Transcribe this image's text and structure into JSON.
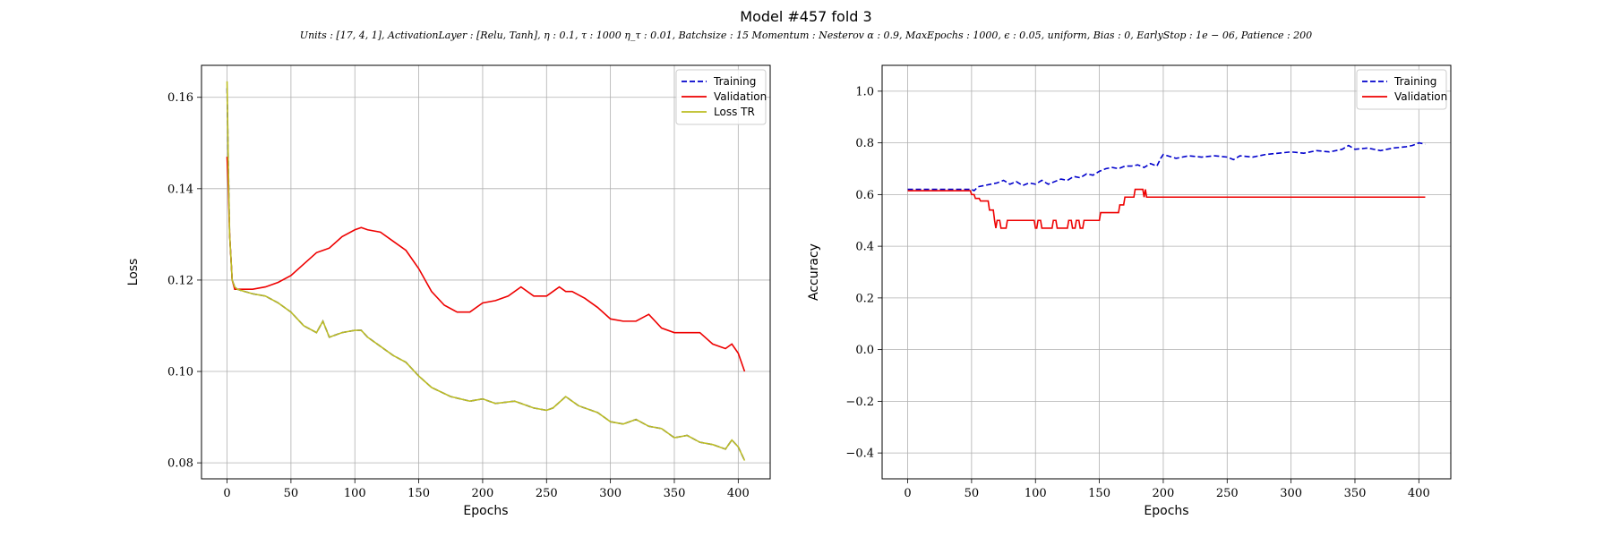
{
  "figure": {
    "title": "Model #457 fold 3",
    "subtitle": "Units : [17, 4, 1], ActivationLayer : [Relu, Tanh], η : 0.1, τ : 1000 η_τ : 0.01, Batchsize : 15 Momentum : Nesterov α : 0.9, MaxEpochs : 1000, ϵ : 0.05, uniform, Bias : 0, EarlyStop : 1e − 06, Patience : 200"
  },
  "chart_data": [
    {
      "type": "line",
      "xlabel": "Epochs",
      "ylabel": "Loss",
      "xlim": [
        -20,
        425
      ],
      "ylim": [
        0.0765,
        0.167
      ],
      "xticks": [
        "0",
        "50",
        "100",
        "150",
        "200",
        "250",
        "300",
        "350",
        "400"
      ],
      "yticks": [
        "0.08",
        "0.10",
        "0.12",
        "0.14",
        "0.16"
      ],
      "grid": true,
      "legend_position": "top-right",
      "series": [
        {
          "name": "Training",
          "color": "#0000cc",
          "dash": "dashed",
          "x": [
            0,
            1,
            2,
            4,
            6,
            8,
            10,
            20,
            30,
            40,
            50,
            60,
            70,
            75,
            80,
            90,
            100,
            105,
            110,
            120,
            130,
            140,
            150,
            160,
            175,
            190,
            200,
            210,
            225,
            240,
            250,
            255,
            265,
            275,
            290,
            300,
            310,
            320,
            330,
            340,
            350,
            360,
            370,
            380,
            390,
            395,
            400,
            405
          ],
          "y": [
            0.162,
            0.145,
            0.13,
            0.12,
            0.1185,
            0.118,
            0.1178,
            0.117,
            0.1165,
            0.115,
            0.113,
            0.11,
            0.1085,
            0.111,
            0.1075,
            0.1085,
            0.109,
            0.109,
            0.1075,
            0.1055,
            0.1035,
            0.102,
            0.099,
            0.0965,
            0.0945,
            0.0935,
            0.094,
            0.093,
            0.0935,
            0.092,
            0.0915,
            0.092,
            0.0945,
            0.0925,
            0.091,
            0.089,
            0.0885,
            0.0895,
            0.088,
            0.0875,
            0.0855,
            0.086,
            0.0845,
            0.084,
            0.083,
            0.085,
            0.0835,
            0.0805
          ]
        },
        {
          "name": "Validation",
          "color": "#ee0000",
          "dash": "solid",
          "x": [
            0,
            1,
            2,
            4,
            6,
            10,
            20,
            30,
            40,
            50,
            60,
            70,
            75,
            80,
            90,
            100,
            105,
            110,
            120,
            130,
            140,
            150,
            160,
            170,
            180,
            190,
            200,
            210,
            220,
            230,
            240,
            250,
            255,
            260,
            265,
            270,
            280,
            290,
            300,
            310,
            320,
            330,
            340,
            350,
            360,
            370,
            380,
            390,
            395,
            400,
            405
          ],
          "y": [
            0.147,
            0.14,
            0.13,
            0.12,
            0.118,
            0.118,
            0.118,
            0.1185,
            0.1195,
            0.121,
            0.1235,
            0.126,
            0.1265,
            0.127,
            0.1295,
            0.131,
            0.1315,
            0.131,
            0.1305,
            0.1285,
            0.1265,
            0.1225,
            0.1175,
            0.1145,
            0.113,
            0.113,
            0.115,
            0.1155,
            0.1165,
            0.1185,
            0.1165,
            0.1165,
            0.1175,
            0.1185,
            0.1175,
            0.1175,
            0.116,
            0.114,
            0.1115,
            0.111,
            0.111,
            0.1125,
            0.1095,
            0.1085,
            0.1085,
            0.1085,
            0.106,
            0.105,
            0.106,
            0.104,
            0.1
          ]
        },
        {
          "name": "Loss TR",
          "color": "#bcbd22",
          "dash": "solid",
          "x": [
            0,
            1,
            2,
            4,
            6,
            8,
            10,
            20,
            30,
            40,
            50,
            60,
            70,
            75,
            80,
            90,
            100,
            105,
            110,
            120,
            130,
            140,
            150,
            160,
            175,
            190,
            200,
            210,
            225,
            240,
            250,
            255,
            265,
            275,
            290,
            300,
            310,
            320,
            330,
            340,
            350,
            360,
            370,
            380,
            390,
            395,
            400,
            405
          ],
          "y": [
            0.1635,
            0.145,
            0.13,
            0.12,
            0.1185,
            0.118,
            0.1178,
            0.117,
            0.1165,
            0.115,
            0.113,
            0.11,
            0.1085,
            0.111,
            0.1075,
            0.1085,
            0.109,
            0.109,
            0.1075,
            0.1055,
            0.1035,
            0.102,
            0.099,
            0.0965,
            0.0945,
            0.0935,
            0.094,
            0.093,
            0.0935,
            0.092,
            0.0915,
            0.092,
            0.0945,
            0.0925,
            0.091,
            0.089,
            0.0885,
            0.0895,
            0.088,
            0.0875,
            0.0855,
            0.086,
            0.0845,
            0.084,
            0.083,
            0.085,
            0.0835,
            0.0805
          ]
        }
      ]
    },
    {
      "type": "line",
      "xlabel": "Epochs",
      "ylabel": "Accuracy",
      "xlim": [
        -20,
        425
      ],
      "ylim": [
        -0.5,
        1.1
      ],
      "xticks": [
        "0",
        "50",
        "100",
        "150",
        "200",
        "250",
        "300",
        "350",
        "400"
      ],
      "yticks": [
        "−0.4",
        "−0.2",
        "0.0",
        "0.2",
        "0.4",
        "0.6",
        "0.8",
        "1.0"
      ],
      "grid": true,
      "legend_position": "top-right",
      "series": [
        {
          "name": "Training",
          "color": "#0000cc",
          "dash": "dashed",
          "x": [
            0,
            10,
            20,
            30,
            40,
            50,
            52,
            55,
            60,
            65,
            70,
            75,
            80,
            85,
            90,
            95,
            100,
            105,
            110,
            115,
            120,
            125,
            130,
            135,
            140,
            145,
            150,
            155,
            160,
            165,
            170,
            175,
            180,
            185,
            190,
            195,
            198,
            200,
            210,
            220,
            230,
            240,
            250,
            255,
            260,
            270,
            280,
            290,
            300,
            310,
            320,
            330,
            340,
            345,
            350,
            360,
            370,
            380,
            390,
            395,
            400,
            405
          ],
          "y": [
            0.62,
            0.62,
            0.62,
            0.62,
            0.62,
            0.62,
            0.615,
            0.63,
            0.635,
            0.64,
            0.645,
            0.655,
            0.64,
            0.65,
            0.635,
            0.645,
            0.64,
            0.655,
            0.64,
            0.65,
            0.66,
            0.655,
            0.67,
            0.665,
            0.68,
            0.675,
            0.69,
            0.7,
            0.705,
            0.7,
            0.71,
            0.71,
            0.715,
            0.705,
            0.72,
            0.71,
            0.74,
            0.755,
            0.74,
            0.75,
            0.745,
            0.75,
            0.745,
            0.735,
            0.75,
            0.745,
            0.755,
            0.76,
            0.765,
            0.76,
            0.77,
            0.765,
            0.775,
            0.79,
            0.775,
            0.78,
            0.77,
            0.78,
            0.785,
            0.79,
            0.8,
            0.795
          ]
        },
        {
          "name": "Validation",
          "color": "#ee0000",
          "dash": "solid",
          "x": [
            0,
            49,
            50,
            52,
            53,
            56,
            57,
            63,
            64,
            67,
            68,
            69,
            70,
            72,
            73,
            77,
            78,
            80,
            81,
            88,
            89,
            99,
            100,
            101,
            102,
            104,
            105,
            106,
            107,
            113,
            114,
            116,
            117,
            119,
            120,
            125,
            126,
            128,
            129,
            131,
            132,
            134,
            135,
            137,
            138,
            150,
            151,
            165,
            166,
            169,
            170,
            171,
            172,
            177,
            178,
            184,
            185,
            186,
            187,
            188,
            189,
            405
          ],
          "y": [
            0.615,
            0.615,
            0.6,
            0.6,
            0.585,
            0.585,
            0.575,
            0.575,
            0.54,
            0.54,
            0.5,
            0.47,
            0.5,
            0.5,
            0.47,
            0.47,
            0.5,
            0.5,
            0.5,
            0.5,
            0.5,
            0.5,
            0.47,
            0.47,
            0.5,
            0.5,
            0.47,
            0.47,
            0.47,
            0.47,
            0.5,
            0.5,
            0.47,
            0.47,
            0.47,
            0.47,
            0.5,
            0.5,
            0.47,
            0.47,
            0.5,
            0.5,
            0.47,
            0.47,
            0.5,
            0.5,
            0.53,
            0.53,
            0.56,
            0.56,
            0.59,
            0.59,
            0.59,
            0.59,
            0.62,
            0.62,
            0.59,
            0.62,
            0.59,
            0.59,
            0.59,
            0.59
          ]
        }
      ]
    }
  ]
}
